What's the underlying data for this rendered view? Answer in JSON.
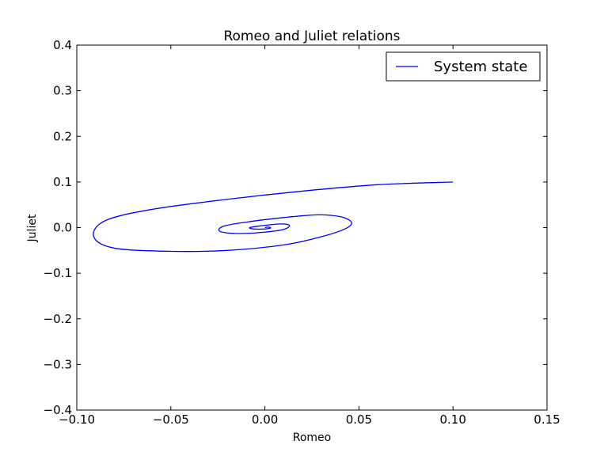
{
  "chart_data": {
    "type": "line",
    "title": "Romeo and Juliet relations",
    "xlabel": "Romeo",
    "ylabel": "Juliet",
    "xlim": [
      -0.1,
      0.15
    ],
    "ylim": [
      -0.4,
      0.4
    ],
    "xticks": [
      -0.1,
      -0.05,
      0.0,
      0.05,
      0.1,
      0.15
    ],
    "xtick_labels": [
      "−0.10",
      "−0.05",
      "0.00",
      "0.05",
      "0.10",
      "0.15"
    ],
    "yticks": [
      0.4,
      0.3,
      0.2,
      0.1,
      0.0,
      -0.1,
      -0.2,
      -0.3,
      -0.4
    ],
    "ytick_labels": [
      "0.4",
      "0.3",
      "0.2",
      "0.1",
      "0.0",
      "−0.1",
      "−0.2",
      "−0.3",
      "−0.4"
    ],
    "grid": false,
    "legend": {
      "position": "top-right",
      "entries": [
        "System state"
      ]
    },
    "series": [
      {
        "name": "System state",
        "color": "#0000ff",
        "x": [
          0.1,
          0.06,
          0.02,
          -0.02,
          -0.06,
          -0.085,
          -0.091,
          -0.08,
          -0.05,
          -0.02,
          0.01,
          0.03,
          0.043,
          0.046,
          0.04,
          0.028,
          0.01,
          -0.01,
          -0.022,
          -0.024,
          -0.015,
          0.0,
          0.01,
          0.013,
          0.008,
          -0.002,
          -0.008,
          -0.006,
          0.0,
          0.003,
          0.002,
          0.0
        ],
        "y": [
          0.1,
          0.094,
          0.08,
          0.062,
          0.04,
          0.015,
          -0.02,
          -0.045,
          -0.052,
          -0.05,
          -0.038,
          -0.02,
          -0.002,
          0.012,
          0.024,
          0.028,
          0.022,
          0.012,
          0.003,
          -0.008,
          -0.013,
          -0.01,
          -0.004,
          0.005,
          0.008,
          0.004,
          0.0,
          -0.003,
          -0.003,
          -0.001,
          0.001,
          0.0
        ]
      }
    ]
  }
}
